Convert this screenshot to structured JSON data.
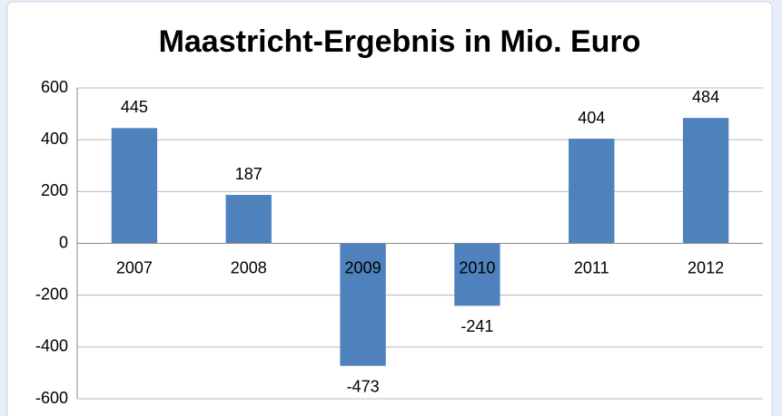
{
  "chart_data": {
    "type": "bar",
    "title": "Maastricht-Ergebnis in Mio. Euro",
    "categories": [
      "2007",
      "2008",
      "2009",
      "2010",
      "2011",
      "2012"
    ],
    "values": [
      445,
      187,
      -473,
      -241,
      404,
      484
    ],
    "color": "#4f81bd",
    "ylim": [
      -600,
      600
    ],
    "yticks": [
      -600,
      -400,
      -200,
      0,
      200,
      400,
      600
    ],
    "grid": true
  }
}
